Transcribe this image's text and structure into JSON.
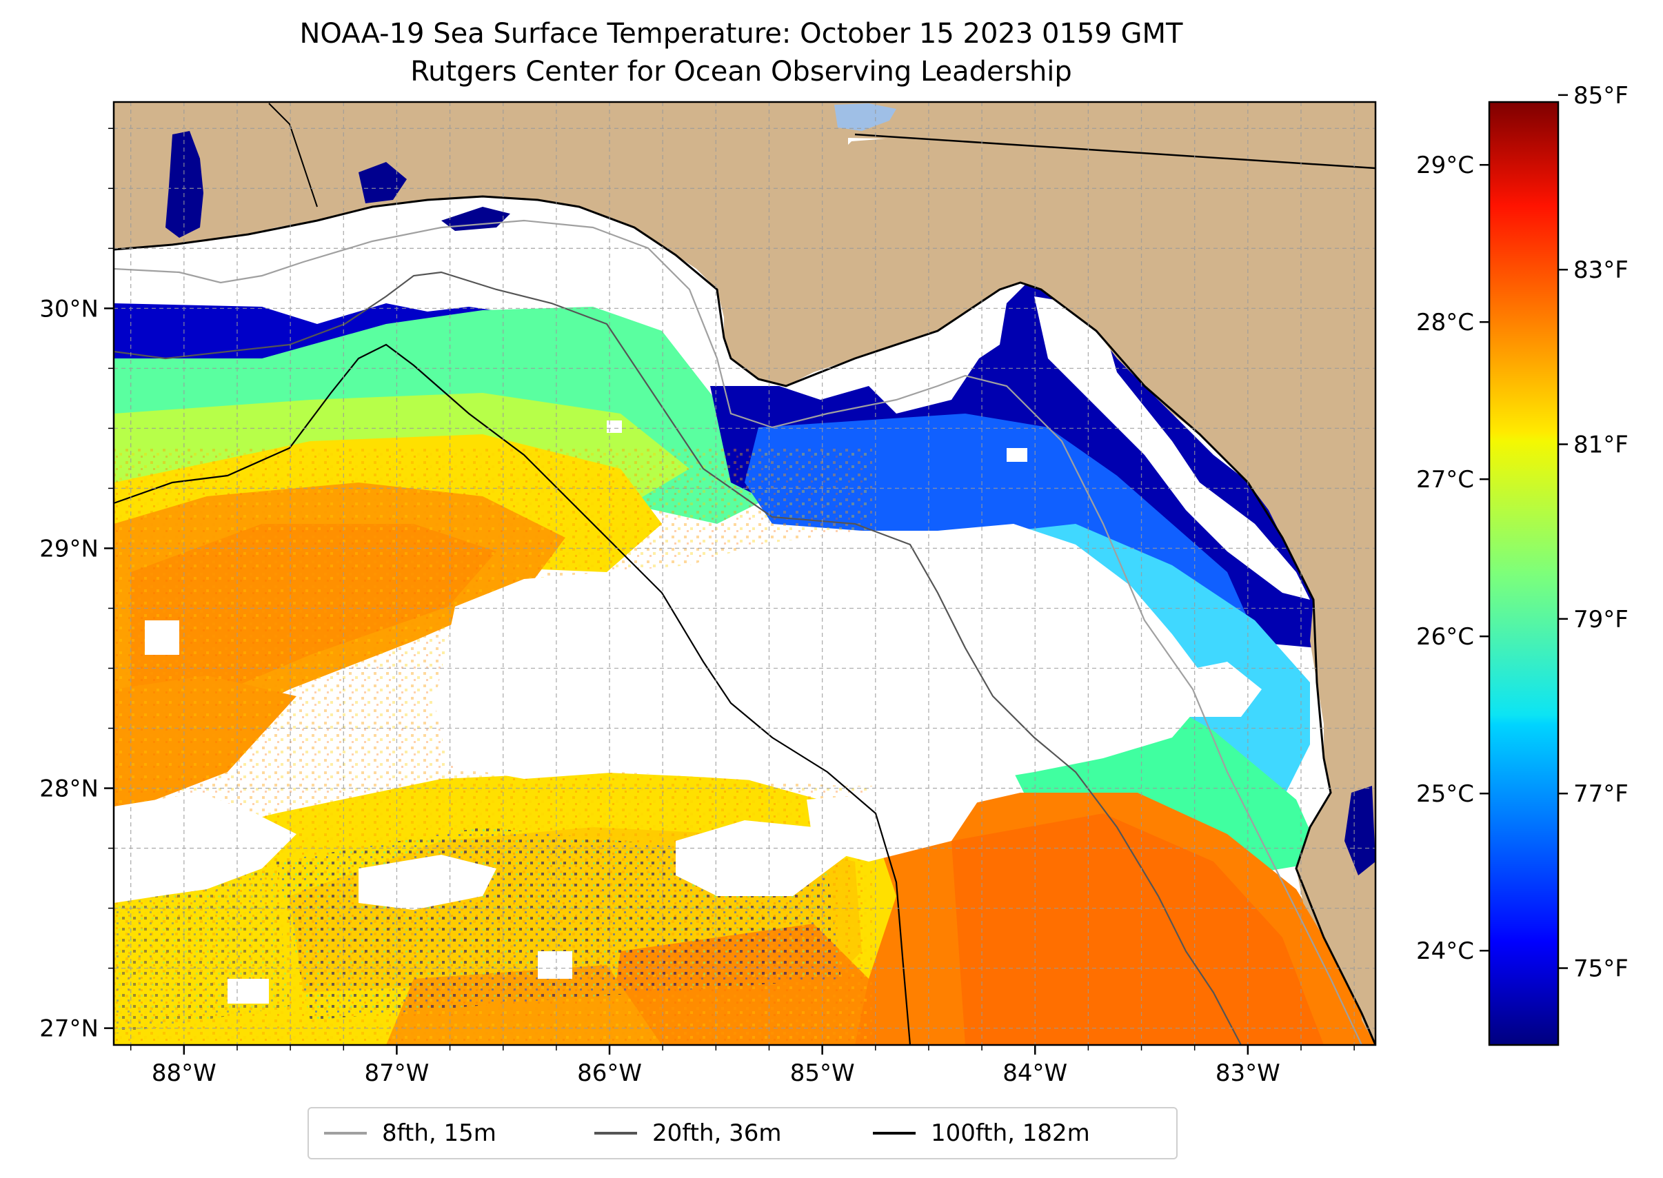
{
  "title": "NOAA-19 Sea Surface Temperature: October 15 2023 0159 GMT",
  "subtitle": "Rutgers Center for Ocean Observing Leadership",
  "map": {
    "extent": {
      "lon": [
        -88.33,
        -82.4
      ],
      "lat": [
        26.93,
        30.86
      ]
    },
    "lon_ticks": [
      {
        "value": -88,
        "label": "88°W"
      },
      {
        "value": -87,
        "label": "87°W"
      },
      {
        "value": -86,
        "label": "86°W"
      },
      {
        "value": -85,
        "label": "85°W"
      },
      {
        "value": -84,
        "label": "84°W"
      },
      {
        "value": -83,
        "label": "83°W"
      }
    ],
    "lat_ticks": [
      {
        "value": 27,
        "label": "27°N"
      },
      {
        "value": 28,
        "label": "28°N"
      },
      {
        "value": 29,
        "label": "29°N"
      },
      {
        "value": 30,
        "label": "30°N"
      }
    ],
    "land_color": "#d2b48c",
    "nodata_color": "#ffffff",
    "lake_color": "#9fbfe6",
    "grid": true
  },
  "colorbar": {
    "colormap": "jet",
    "range_c": [
      23.4,
      29.4
    ],
    "celsius_ticks": [
      {
        "value": 24,
        "label": "24°C"
      },
      {
        "value": 25,
        "label": "25°C"
      },
      {
        "value": 26,
        "label": "26°C"
      },
      {
        "value": 27,
        "label": "27°C"
      },
      {
        "value": 28,
        "label": "28°C"
      },
      {
        "value": 29,
        "label": "29°C"
      }
    ],
    "fahrenheit_ticks": [
      {
        "value": 75,
        "label": "75°F"
      },
      {
        "value": 77,
        "label": "77°F"
      },
      {
        "value": 79,
        "label": "79°F"
      },
      {
        "value": 81,
        "label": "81°F"
      },
      {
        "value": 83,
        "label": "83°F"
      },
      {
        "value": 85,
        "label": "85°F"
      }
    ]
  },
  "legend": {
    "items": [
      {
        "label": "8fth, 15m",
        "color": "#a0a0a0"
      },
      {
        "label": "20fth, 36m",
        "color": "#555555"
      },
      {
        "label": "100fth, 182m",
        "color": "#000000"
      }
    ]
  }
}
